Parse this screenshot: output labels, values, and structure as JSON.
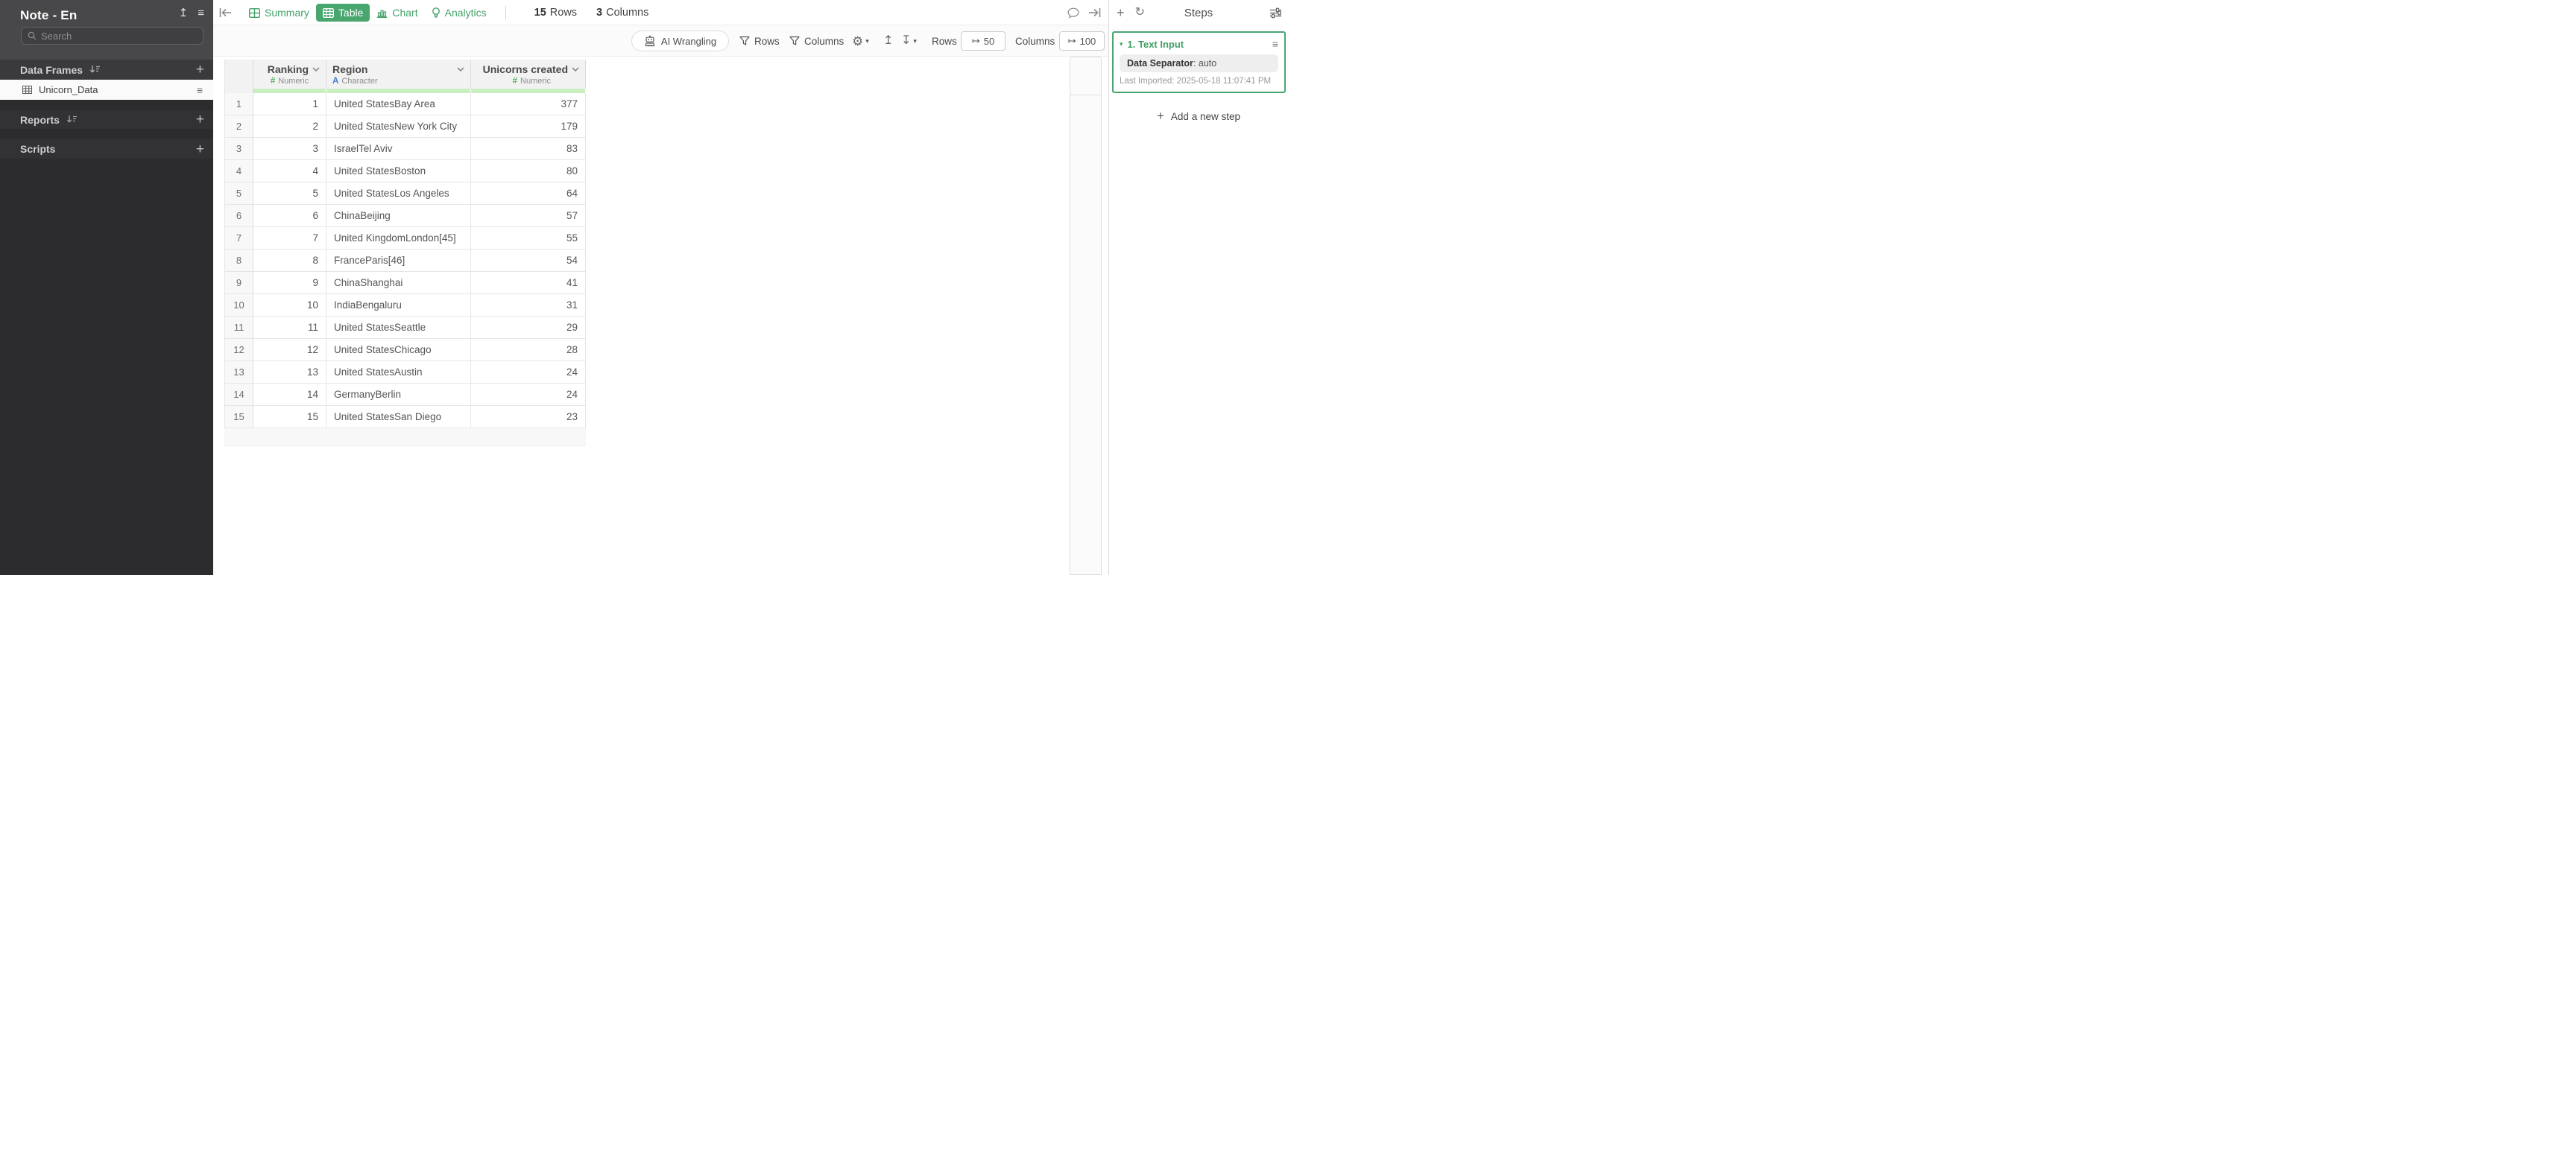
{
  "sidebar": {
    "title": "Note - En",
    "search_placeholder": "Search",
    "sections": [
      {
        "label": "Data Frames"
      },
      {
        "label": "Reports"
      },
      {
        "label": "Scripts"
      }
    ],
    "selected_dataframe": "Unicorn_Data"
  },
  "tabs": [
    {
      "label": "Summary"
    },
    {
      "label": "Table",
      "active": true
    },
    {
      "label": "Chart"
    },
    {
      "label": "Analytics"
    }
  ],
  "summary_bar": {
    "rows_count": "15",
    "rows_label": "Rows",
    "columns_count": "3",
    "columns_label": "Columns"
  },
  "toolbar": {
    "ai_wrangling_label": "AI Wrangling",
    "rows_filter_label": "Rows",
    "columns_filter_label": "Columns",
    "rows_limit_label": "Rows",
    "rows_limit_value": "50",
    "columns_limit_label": "Columns",
    "columns_limit_value": "100"
  },
  "steps_panel": {
    "title": "Steps",
    "step": {
      "title": "1. Text Input",
      "property_label": "Data Separator",
      "property_separator": ": ",
      "property_value": "auto",
      "last_imported": "Last Imported: 2025-05-18 11:07:41 PM"
    },
    "add_step_label": "Add a new step"
  },
  "table": {
    "columns": [
      {
        "name": "Ranking",
        "type_icon": "#",
        "type": "Numeric",
        "align": "right"
      },
      {
        "name": "Region",
        "type_icon": "A",
        "type": "Character",
        "align": "left"
      },
      {
        "name": "Unicorns created",
        "type_icon": "#",
        "type": "Numeric",
        "align": "right"
      }
    ],
    "rows": [
      [
        1,
        "United StatesBay Area",
        377
      ],
      [
        2,
        "United StatesNew York City",
        179
      ],
      [
        3,
        "IsraelTel Aviv",
        83
      ],
      [
        4,
        "United StatesBoston",
        80
      ],
      [
        5,
        "United StatesLos Angeles",
        64
      ],
      [
        6,
        "ChinaBeijing",
        57
      ],
      [
        7,
        "United KingdomLondon[45]",
        55
      ],
      [
        8,
        "FranceParis[46]",
        54
      ],
      [
        9,
        "ChinaShanghai",
        41
      ],
      [
        10,
        "IndiaBengaluru",
        31
      ],
      [
        11,
        "United StatesSeattle",
        29
      ],
      [
        12,
        "United StatesChicago",
        28
      ],
      [
        13,
        "United StatesAustin",
        24
      ],
      [
        14,
        "GermanyBerlin",
        24
      ],
      [
        15,
        "United StatesSan Diego",
        23
      ]
    ]
  },
  "icons": {
    "upload": "↥",
    "download": "↧",
    "hamburger": "≡",
    "plus": "+",
    "gear": "⚙",
    "caret_down": "▾",
    "refresh": "↻",
    "map_arrow": "↦",
    "step_triangle": "▾"
  },
  "colors": {
    "accent_green": "#48a66e",
    "quality_bar_green": "#c9eec0",
    "numeric_type": "#55b061",
    "character_type": "#3d7fd4",
    "sidebar_bg": "#2c2c2e",
    "sidebar_header_bg": "#48484a"
  }
}
